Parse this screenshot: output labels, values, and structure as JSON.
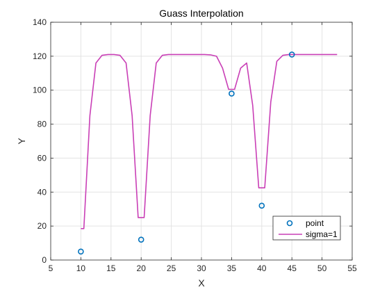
{
  "chart_data": {
    "type": "line",
    "title": "Guass Interpolation",
    "xlabel": "X",
    "ylabel": "Y",
    "xlim": [
      5,
      55
    ],
    "ylim": [
      0,
      140
    ],
    "xticks": [
      5,
      10,
      15,
      20,
      25,
      30,
      35,
      40,
      45,
      50,
      55
    ],
    "yticks": [
      0,
      20,
      40,
      60,
      80,
      100,
      120,
      140
    ],
    "grid": true,
    "legend_position": "bottom-right",
    "series": [
      {
        "name": "point",
        "kind": "scatter",
        "marker": "circle",
        "color": "#0072BD",
        "x": [
          10,
          20,
          35,
          40,
          45
        ],
        "y": [
          5,
          12,
          98,
          32,
          121
        ]
      },
      {
        "name": "sigma=1",
        "kind": "line",
        "color": "#C93FB6",
        "x": [
          10,
          10.5,
          11.5,
          12.5,
          13.5,
          14.5,
          15.5,
          16.5,
          17.5,
          18.5,
          19.5,
          20.5,
          21.5,
          22.5,
          23.5,
          24.5,
          25.5,
          26.5,
          27.5,
          28.5,
          29.5,
          30.5,
          31.5,
          32.5,
          33.5,
          34.5,
          35.5,
          36.5,
          37.5,
          38.5,
          39.5,
          40.5,
          41.5,
          42.5,
          43.5,
          44.5,
          45.5,
          46.5,
          47.5,
          48.5,
          49.5,
          50.5,
          51.5,
          52.5
        ],
        "y": [
          18.5,
          18.5,
          85,
          116,
          120.5,
          121,
          121,
          120.5,
          116,
          85,
          25,
          25,
          85,
          116,
          120.5,
          121,
          121,
          121,
          121,
          121,
          121,
          121,
          120.8,
          120,
          113,
          100.5,
          100.5,
          113,
          116,
          91,
          42.5,
          42.5,
          93,
          117,
          120.5,
          121,
          121,
          121,
          121,
          121,
          121,
          121,
          121,
          121
        ]
      }
    ]
  }
}
